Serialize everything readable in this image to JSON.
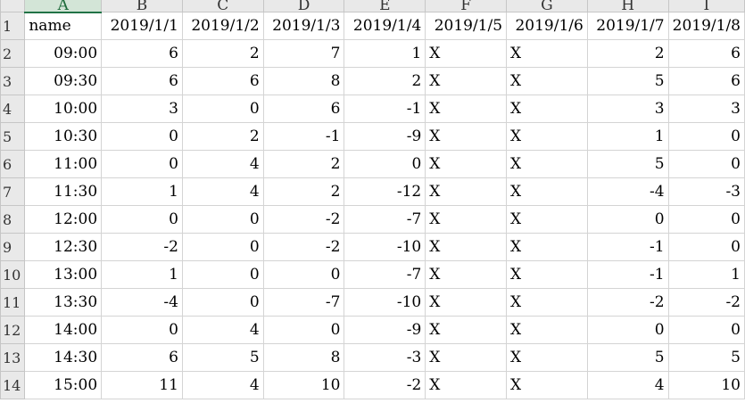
{
  "columns": [
    "A",
    "B",
    "C",
    "D",
    "E",
    "F",
    "G",
    "H",
    "I"
  ],
  "active_column": "A",
  "row_numbers": [
    "1",
    "2",
    "3",
    "4",
    "5",
    "6",
    "7",
    "8",
    "9",
    "10",
    "11",
    "12",
    "13",
    "14"
  ],
  "header_row": [
    "name",
    "2019/1/1",
    "2019/1/2",
    "2019/1/3",
    "2019/1/4",
    "2019/1/5",
    "2019/1/6",
    "2019/1/7",
    "2019/1/8"
  ],
  "rows": [
    [
      "09:00",
      "6",
      "2",
      "7",
      "1",
      "X",
      "X",
      "2",
      "6"
    ],
    [
      "09:30",
      "6",
      "6",
      "8",
      "2",
      "X",
      "X",
      "5",
      "6"
    ],
    [
      "10:00",
      "3",
      "0",
      "6",
      "-1",
      "X",
      "X",
      "3",
      "3"
    ],
    [
      "10:30",
      "0",
      "2",
      "-1",
      "-9",
      "X",
      "X",
      "1",
      "0"
    ],
    [
      "11:00",
      "0",
      "4",
      "2",
      "0",
      "X",
      "X",
      "5",
      "0"
    ],
    [
      "11:30",
      "1",
      "4",
      "2",
      "-12",
      "X",
      "X",
      "-4",
      "-3"
    ],
    [
      "12:00",
      "0",
      "0",
      "-2",
      "-7",
      "X",
      "X",
      "0",
      "0"
    ],
    [
      "12:30",
      "-2",
      "0",
      "-2",
      "-10",
      "X",
      "X",
      "-1",
      "0"
    ],
    [
      "13:00",
      "1",
      "0",
      "0",
      "-7",
      "X",
      "X",
      "-1",
      "1"
    ],
    [
      "13:30",
      "-4",
      "0",
      "-7",
      "-10",
      "X",
      "X",
      "-2",
      "-2"
    ],
    [
      "14:00",
      "0",
      "4",
      "0",
      "-9",
      "X",
      "X",
      "0",
      "0"
    ],
    [
      "14:30",
      "6",
      "5",
      "8",
      "-3",
      "X",
      "X",
      "5",
      "5"
    ],
    [
      "15:00",
      "11",
      "4",
      "10",
      "-2",
      "X",
      "X",
      "4",
      "10"
    ]
  ]
}
